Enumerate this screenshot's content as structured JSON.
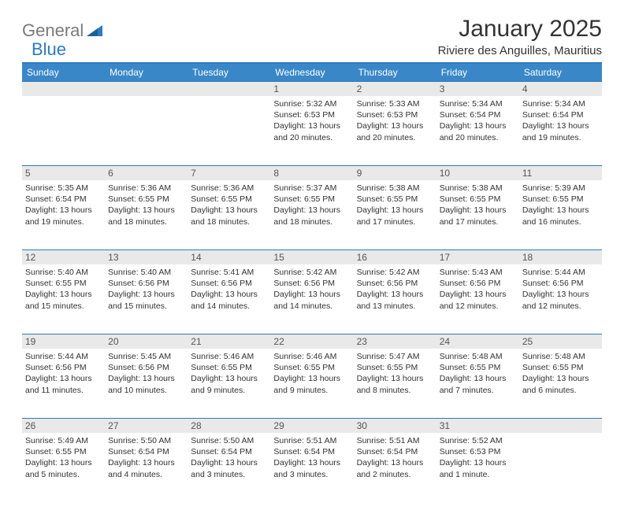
{
  "brand": {
    "part1": "General",
    "part2": "Blue"
  },
  "title": "January 2025",
  "location": "Riviere des Anguilles, Mauritius",
  "colors": {
    "header_bg": "#3a87c8",
    "header_border": "#2b7bbf",
    "daynum_bg": "#e9e9e9",
    "text": "#333333",
    "logo_gray": "#7a7a7a",
    "logo_blue": "#2b7bbf"
  },
  "dayNames": [
    "Sunday",
    "Monday",
    "Tuesday",
    "Wednesday",
    "Thursday",
    "Friday",
    "Saturday"
  ],
  "weeks": [
    [
      null,
      null,
      null,
      {
        "n": "1",
        "sunrise": "5:32 AM",
        "sunset": "6:53 PM",
        "daylight": "13 hours and 20 minutes."
      },
      {
        "n": "2",
        "sunrise": "5:33 AM",
        "sunset": "6:53 PM",
        "daylight": "13 hours and 20 minutes."
      },
      {
        "n": "3",
        "sunrise": "5:34 AM",
        "sunset": "6:54 PM",
        "daylight": "13 hours and 20 minutes."
      },
      {
        "n": "4",
        "sunrise": "5:34 AM",
        "sunset": "6:54 PM",
        "daylight": "13 hours and 19 minutes."
      }
    ],
    [
      {
        "n": "5",
        "sunrise": "5:35 AM",
        "sunset": "6:54 PM",
        "daylight": "13 hours and 19 minutes."
      },
      {
        "n": "6",
        "sunrise": "5:36 AM",
        "sunset": "6:55 PM",
        "daylight": "13 hours and 18 minutes."
      },
      {
        "n": "7",
        "sunrise": "5:36 AM",
        "sunset": "6:55 PM",
        "daylight": "13 hours and 18 minutes."
      },
      {
        "n": "8",
        "sunrise": "5:37 AM",
        "sunset": "6:55 PM",
        "daylight": "13 hours and 18 minutes."
      },
      {
        "n": "9",
        "sunrise": "5:38 AM",
        "sunset": "6:55 PM",
        "daylight": "13 hours and 17 minutes."
      },
      {
        "n": "10",
        "sunrise": "5:38 AM",
        "sunset": "6:55 PM",
        "daylight": "13 hours and 17 minutes."
      },
      {
        "n": "11",
        "sunrise": "5:39 AM",
        "sunset": "6:55 PM",
        "daylight": "13 hours and 16 minutes."
      }
    ],
    [
      {
        "n": "12",
        "sunrise": "5:40 AM",
        "sunset": "6:55 PM",
        "daylight": "13 hours and 15 minutes."
      },
      {
        "n": "13",
        "sunrise": "5:40 AM",
        "sunset": "6:56 PM",
        "daylight": "13 hours and 15 minutes."
      },
      {
        "n": "14",
        "sunrise": "5:41 AM",
        "sunset": "6:56 PM",
        "daylight": "13 hours and 14 minutes."
      },
      {
        "n": "15",
        "sunrise": "5:42 AM",
        "sunset": "6:56 PM",
        "daylight": "13 hours and 14 minutes."
      },
      {
        "n": "16",
        "sunrise": "5:42 AM",
        "sunset": "6:56 PM",
        "daylight": "13 hours and 13 minutes."
      },
      {
        "n": "17",
        "sunrise": "5:43 AM",
        "sunset": "6:56 PM",
        "daylight": "13 hours and 12 minutes."
      },
      {
        "n": "18",
        "sunrise": "5:44 AM",
        "sunset": "6:56 PM",
        "daylight": "13 hours and 12 minutes."
      }
    ],
    [
      {
        "n": "19",
        "sunrise": "5:44 AM",
        "sunset": "6:56 PM",
        "daylight": "13 hours and 11 minutes."
      },
      {
        "n": "20",
        "sunrise": "5:45 AM",
        "sunset": "6:56 PM",
        "daylight": "13 hours and 10 minutes."
      },
      {
        "n": "21",
        "sunrise": "5:46 AM",
        "sunset": "6:55 PM",
        "daylight": "13 hours and 9 minutes."
      },
      {
        "n": "22",
        "sunrise": "5:46 AM",
        "sunset": "6:55 PM",
        "daylight": "13 hours and 9 minutes."
      },
      {
        "n": "23",
        "sunrise": "5:47 AM",
        "sunset": "6:55 PM",
        "daylight": "13 hours and 8 minutes."
      },
      {
        "n": "24",
        "sunrise": "5:48 AM",
        "sunset": "6:55 PM",
        "daylight": "13 hours and 7 minutes."
      },
      {
        "n": "25",
        "sunrise": "5:48 AM",
        "sunset": "6:55 PM",
        "daylight": "13 hours and 6 minutes."
      }
    ],
    [
      {
        "n": "26",
        "sunrise": "5:49 AM",
        "sunset": "6:55 PM",
        "daylight": "13 hours and 5 minutes."
      },
      {
        "n": "27",
        "sunrise": "5:50 AM",
        "sunset": "6:54 PM",
        "daylight": "13 hours and 4 minutes."
      },
      {
        "n": "28",
        "sunrise": "5:50 AM",
        "sunset": "6:54 PM",
        "daylight": "13 hours and 3 minutes."
      },
      {
        "n": "29",
        "sunrise": "5:51 AM",
        "sunset": "6:54 PM",
        "daylight": "13 hours and 3 minutes."
      },
      {
        "n": "30",
        "sunrise": "5:51 AM",
        "sunset": "6:54 PM",
        "daylight": "13 hours and 2 minutes."
      },
      {
        "n": "31",
        "sunrise": "5:52 AM",
        "sunset": "6:53 PM",
        "daylight": "13 hours and 1 minute."
      },
      null
    ]
  ],
  "labels": {
    "sunrise": "Sunrise:",
    "sunset": "Sunset:",
    "daylight": "Daylight:"
  }
}
